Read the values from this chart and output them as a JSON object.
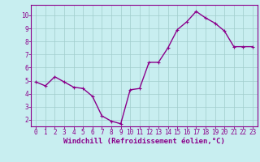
{
  "x": [
    0,
    1,
    2,
    3,
    4,
    5,
    6,
    7,
    8,
    9,
    10,
    11,
    12,
    13,
    14,
    15,
    16,
    17,
    18,
    19,
    20,
    21,
    22,
    23
  ],
  "y": [
    4.9,
    4.6,
    5.3,
    4.9,
    4.5,
    4.4,
    3.8,
    2.3,
    1.9,
    1.7,
    4.3,
    4.4,
    6.4,
    6.4,
    7.5,
    8.9,
    9.5,
    10.3,
    9.8,
    9.4,
    8.8,
    7.6,
    7.6,
    7.6
  ],
  "line_color": "#8B008B",
  "marker": "+",
  "marker_color": "#8B008B",
  "bg_color": "#c8eef0",
  "grid_color": "#a0cccc",
  "xlabel": "Windchill (Refroidissement éolien,°C)",
  "xlabel_color": "#8B008B",
  "xtick_labels": [
    "0",
    "1",
    "2",
    "3",
    "4",
    "5",
    "6",
    "7",
    "8",
    "9",
    "10",
    "11",
    "12",
    "13",
    "14",
    "15",
    "16",
    "17",
    "18",
    "19",
    "20",
    "21",
    "22",
    "23"
  ],
  "ytick_labels": [
    "2",
    "3",
    "4",
    "5",
    "6",
    "7",
    "8",
    "9",
    "10"
  ],
  "ytick_vals": [
    2,
    3,
    4,
    5,
    6,
    7,
    8,
    9,
    10
  ],
  "ylim": [
    1.5,
    10.8
  ],
  "xlim": [
    -0.5,
    23.5
  ],
  "axis_color": "#8B008B",
  "tick_color": "#8B008B",
  "font_size_label": 6.5,
  "font_size_tick": 5.5,
  "linewidth": 1.0,
  "markersize": 3.5
}
